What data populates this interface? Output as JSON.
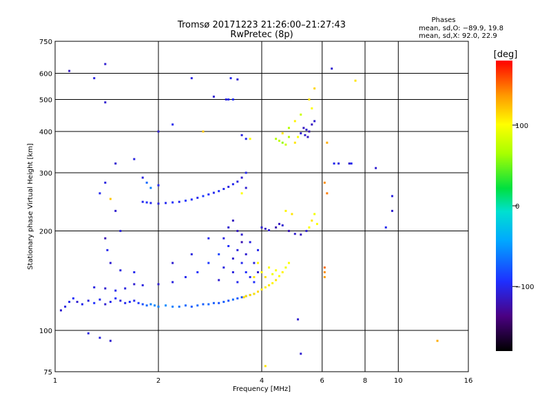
{
  "chart_data": {
    "type": "scatter",
    "title": "Tromsø 20171223 21:26:00–21:27:43",
    "subtitle": "RwPretec (8p)",
    "stats": {
      "heading": "Phases",
      "line_o": "mean, sd,O: −89.9, 19.8",
      "line_x": "mean, sd,X:  92.0, 22.9"
    },
    "xlabel": "Frequency [MHz]",
    "ylabel": "Stationary phase Virtual Height [km]",
    "x_scale": "log",
    "y_scale": "log",
    "xlim": [
      1,
      16
    ],
    "ylim": [
      75,
      750
    ],
    "x_ticks": [
      {
        "value": 1,
        "label": "1"
      },
      {
        "value": 2,
        "label": "2"
      },
      {
        "value": 4,
        "label": "4"
      },
      {
        "value": 6,
        "label": "6"
      },
      {
        "value": 8,
        "label": "8"
      },
      {
        "value": 10,
        "label": "10"
      },
      {
        "value": 16,
        "label": "16"
      }
    ],
    "y_ticks": [
      {
        "value": 75,
        "label": "75"
      },
      {
        "value": 100,
        "label": "100"
      },
      {
        "value": 200,
        "label": "200"
      },
      {
        "value": 300,
        "label": "300"
      },
      {
        "value": 400,
        "label": "400"
      },
      {
        "value": 500,
        "label": "500"
      },
      {
        "value": 600,
        "label": "600"
      },
      {
        "value": 750,
        "label": "750"
      }
    ],
    "grid": true,
    "colorbar": {
      "unit": "deg",
      "range": [
        -180,
        180
      ],
      "ticks": [
        {
          "value": 100,
          "label": "100"
        },
        {
          "value": 0,
          "label": "0"
        },
        {
          "value": -100,
          "label": "−100"
        }
      ]
    },
    "points": [
      [
        1.04,
        115,
        -110
      ],
      [
        1.07,
        118,
        -105
      ],
      [
        1.1,
        122,
        -100
      ],
      [
        1.13,
        125,
        -95
      ],
      [
        1.16,
        122,
        -110
      ],
      [
        1.2,
        120,
        -100
      ],
      [
        1.25,
        123,
        -105
      ],
      [
        1.3,
        121,
        -95
      ],
      [
        1.35,
        124,
        -100
      ],
      [
        1.4,
        120,
        -110
      ],
      [
        1.45,
        122,
        -100
      ],
      [
        1.5,
        125,
        -95
      ],
      [
        1.55,
        123,
        -105
      ],
      [
        1.6,
        121,
        -100
      ],
      [
        1.65,
        122,
        -95
      ],
      [
        1.7,
        123,
        -100
      ],
      [
        1.75,
        121,
        -90
      ],
      [
        1.8,
        120,
        -80
      ],
      [
        1.85,
        119,
        -70
      ],
      [
        1.9,
        120,
        -60
      ],
      [
        1.95,
        119,
        -55
      ],
      [
        2.0,
        118,
        -60
      ],
      [
        2.1,
        119,
        -55
      ],
      [
        2.2,
        118,
        -60
      ],
      [
        2.3,
        118,
        -65
      ],
      [
        2.4,
        119,
        -70
      ],
      [
        2.5,
        118,
        -75
      ],
      [
        2.6,
        119,
        -70
      ],
      [
        2.7,
        120,
        -75
      ],
      [
        2.8,
        120,
        -70
      ],
      [
        2.9,
        121,
        -75
      ],
      [
        3.0,
        121,
        -80
      ],
      [
        3.1,
        122,
        -75
      ],
      [
        3.2,
        123,
        -80
      ],
      [
        3.3,
        124,
        -70
      ],
      [
        3.4,
        125,
        -75
      ],
      [
        3.5,
        126,
        -80
      ],
      [
        3.6,
        127,
        -70
      ],
      [
        3.7,
        128,
        -75
      ],
      [
        3.8,
        129,
        -70
      ],
      [
        1.3,
        135,
        -105
      ],
      [
        1.4,
        134,
        -110
      ],
      [
        1.5,
        132,
        -100
      ],
      [
        1.6,
        134,
        -105
      ],
      [
        1.7,
        138,
        -110
      ],
      [
        1.8,
        137,
        -105
      ],
      [
        2.0,
        138,
        -110
      ],
      [
        2.2,
        140,
        -105
      ],
      [
        2.4,
        145,
        -100
      ],
      [
        2.6,
        150,
        -95
      ],
      [
        2.8,
        160,
        -90
      ],
      [
        3.0,
        170,
        -85
      ],
      [
        3.2,
        180,
        -95
      ],
      [
        3.1,
        190,
        -105
      ],
      [
        3.2,
        205,
        -110
      ],
      [
        3.3,
        215,
        -115
      ],
      [
        3.0,
        142,
        -110
      ],
      [
        3.1,
        155,
        -105
      ],
      [
        3.3,
        165,
        -110
      ],
      [
        3.4,
        175,
        -105
      ],
      [
        3.5,
        160,
        -100
      ],
      [
        3.6,
        150,
        -95
      ],
      [
        3.6,
        170,
        -110
      ],
      [
        3.7,
        185,
        -105
      ],
      [
        3.5,
        195,
        -110
      ],
      [
        3.4,
        140,
        -100
      ],
      [
        3.3,
        150,
        -105
      ],
      [
        3.7,
        145,
        -100
      ],
      [
        3.8,
        160,
        -105
      ],
      [
        3.9,
        175,
        -100
      ],
      [
        3.8,
        140,
        -95
      ],
      [
        3.9,
        150,
        -110
      ],
      [
        3.4,
        200,
        -115
      ],
      [
        3.5,
        185,
        -120
      ],
      [
        3.55,
        126,
        115
      ],
      [
        3.6,
        127,
        110
      ],
      [
        3.7,
        128,
        115
      ],
      [
        3.8,
        129,
        110
      ],
      [
        3.9,
        131,
        115
      ],
      [
        4.0,
        133,
        110
      ],
      [
        4.1,
        135,
        105
      ],
      [
        4.2,
        137,
        110
      ],
      [
        4.3,
        139,
        105
      ],
      [
        4.4,
        142,
        110
      ],
      [
        4.5,
        146,
        100
      ],
      [
        4.6,
        150,
        105
      ],
      [
        4.7,
        155,
        95
      ],
      [
        4.8,
        160,
        100
      ],
      [
        4.0,
        150,
        105
      ],
      [
        4.1,
        145,
        110
      ],
      [
        4.2,
        155,
        100
      ],
      [
        3.9,
        160,
        105
      ],
      [
        4.3,
        148,
        95
      ],
      [
        4.4,
        152,
        100
      ],
      [
        3.8,
        145,
        110
      ],
      [
        1.8,
        245,
        -100
      ],
      [
        1.85,
        244,
        -95
      ],
      [
        1.9,
        243,
        -100
      ],
      [
        2.0,
        242,
        -105
      ],
      [
        2.1,
        243,
        -100
      ],
      [
        2.2,
        244,
        -95
      ],
      [
        2.3,
        245,
        -100
      ],
      [
        2.4,
        247,
        -90
      ],
      [
        2.5,
        249,
        -95
      ],
      [
        2.6,
        252,
        -100
      ],
      [
        2.7,
        255,
        -90
      ],
      [
        2.8,
        258,
        -95
      ],
      [
        2.9,
        261,
        -100
      ],
      [
        3.0,
        264,
        -95
      ],
      [
        3.1,
        268,
        -100
      ],
      [
        3.2,
        272,
        -105
      ],
      [
        3.3,
        277,
        -100
      ],
      [
        3.4,
        282,
        -105
      ],
      [
        3.5,
        290,
        -110
      ],
      [
        3.6,
        300,
        -100
      ],
      [
        1.8,
        290,
        -105
      ],
      [
        1.85,
        280,
        -70
      ],
      [
        1.9,
        270,
        -60
      ],
      [
        2.0,
        275,
        -100
      ],
      [
        4.0,
        205,
        -110
      ],
      [
        4.1,
        203,
        -115
      ],
      [
        4.2,
        201,
        -110
      ],
      [
        4.4,
        205,
        -120
      ],
      [
        4.5,
        210,
        -115
      ],
      [
        4.6,
        208,
        -110
      ],
      [
        4.8,
        200,
        -120
      ],
      [
        5.0,
        196,
        -110
      ],
      [
        5.2,
        195,
        -115
      ],
      [
        5.4,
        200,
        -110
      ],
      [
        5.5,
        205,
        100
      ],
      [
        5.6,
        215,
        110
      ],
      [
        5.7,
        225,
        95
      ],
      [
        5.8,
        210,
        100
      ],
      [
        4.7,
        230,
        105
      ],
      [
        4.9,
        225,
        110
      ],
      [
        4.4,
        380,
        70
      ],
      [
        4.5,
        375,
        75
      ],
      [
        4.6,
        370,
        60
      ],
      [
        4.7,
        365,
        80
      ],
      [
        4.8,
        385,
        70
      ],
      [
        5.0,
        370,
        110
      ],
      [
        5.1,
        385,
        100
      ],
      [
        5.2,
        395,
        -110
      ],
      [
        5.3,
        410,
        -115
      ],
      [
        5.4,
        405,
        -110
      ],
      [
        5.5,
        400,
        -120
      ],
      [
        5.6,
        420,
        -115
      ],
      [
        5.7,
        430,
        -110
      ],
      [
        5.6,
        470,
        100
      ],
      [
        5.5,
        500,
        110
      ],
      [
        5.7,
        540,
        115
      ],
      [
        5.2,
        450,
        80
      ],
      [
        5.0,
        430,
        105
      ],
      [
        4.6,
        395,
        110
      ],
      [
        4.8,
        410,
        70
      ],
      [
        5.35,
        390,
        -110
      ],
      [
        5.45,
        385,
        -115
      ],
      [
        3.2,
        500,
        -100
      ],
      [
        3.3,
        500,
        -95
      ],
      [
        3.15,
        500,
        -105
      ],
      [
        3.4,
        575,
        -110
      ],
      [
        3.25,
        580,
        -100
      ],
      [
        2.9,
        510,
        -110
      ],
      [
        2.5,
        580,
        -105
      ],
      [
        1.4,
        640,
        -110
      ],
      [
        1.1,
        610,
        -115
      ],
      [
        1.3,
        580,
        -105
      ],
      [
        1.4,
        490,
        -110
      ],
      [
        3.6,
        380,
        -100
      ],
      [
        3.7,
        380,
        100
      ],
      [
        3.5,
        390,
        -105
      ],
      [
        2.7,
        400,
        120
      ],
      [
        2.2,
        420,
        -100
      ],
      [
        2.0,
        400,
        -110
      ],
      [
        1.4,
        280,
        -105
      ],
      [
        1.5,
        320,
        -110
      ],
      [
        1.35,
        260,
        -100
      ],
      [
        1.45,
        250,
        120
      ],
      [
        1.5,
        230,
        -110
      ],
      [
        1.55,
        200,
        -105
      ],
      [
        1.4,
        190,
        -120
      ],
      [
        1.42,
        175,
        -100
      ],
      [
        1.45,
        160,
        -110
      ],
      [
        1.55,
        152,
        -105
      ],
      [
        1.7,
        150,
        -100
      ],
      [
        2.2,
        160,
        -110
      ],
      [
        2.5,
        170,
        -105
      ],
      [
        2.8,
        190,
        -100
      ],
      [
        1.7,
        330,
        -105
      ],
      [
        3.5,
        260,
        100
      ],
      [
        3.6,
        270,
        -110
      ],
      [
        6.2,
        370,
        130
      ],
      [
        6.1,
        280,
        140
      ],
      [
        6.2,
        260,
        145
      ],
      [
        6.5,
        320,
        -100
      ],
      [
        6.7,
        320,
        -105
      ],
      [
        7.2,
        320,
        -110
      ],
      [
        7.3,
        320,
        -100
      ],
      [
        8.6,
        310,
        -110
      ],
      [
        9.6,
        255,
        -105
      ],
      [
        9.6,
        230,
        -110
      ],
      [
        9.2,
        205,
        -100
      ],
      [
        6.4,
        620,
        -110
      ],
      [
        7.5,
        570,
        110
      ],
      [
        6.1,
        155,
        150
      ],
      [
        6.1,
        150,
        140
      ],
      [
        6.1,
        145,
        135
      ],
      [
        5.1,
        108,
        -110
      ],
      [
        5.2,
        85,
        -110
      ],
      [
        4.1,
        78,
        110
      ],
      [
        13.0,
        93,
        130
      ],
      [
        1.35,
        95,
        -105
      ],
      [
        1.45,
        93,
        -110
      ],
      [
        1.25,
        98,
        -105
      ]
    ]
  }
}
